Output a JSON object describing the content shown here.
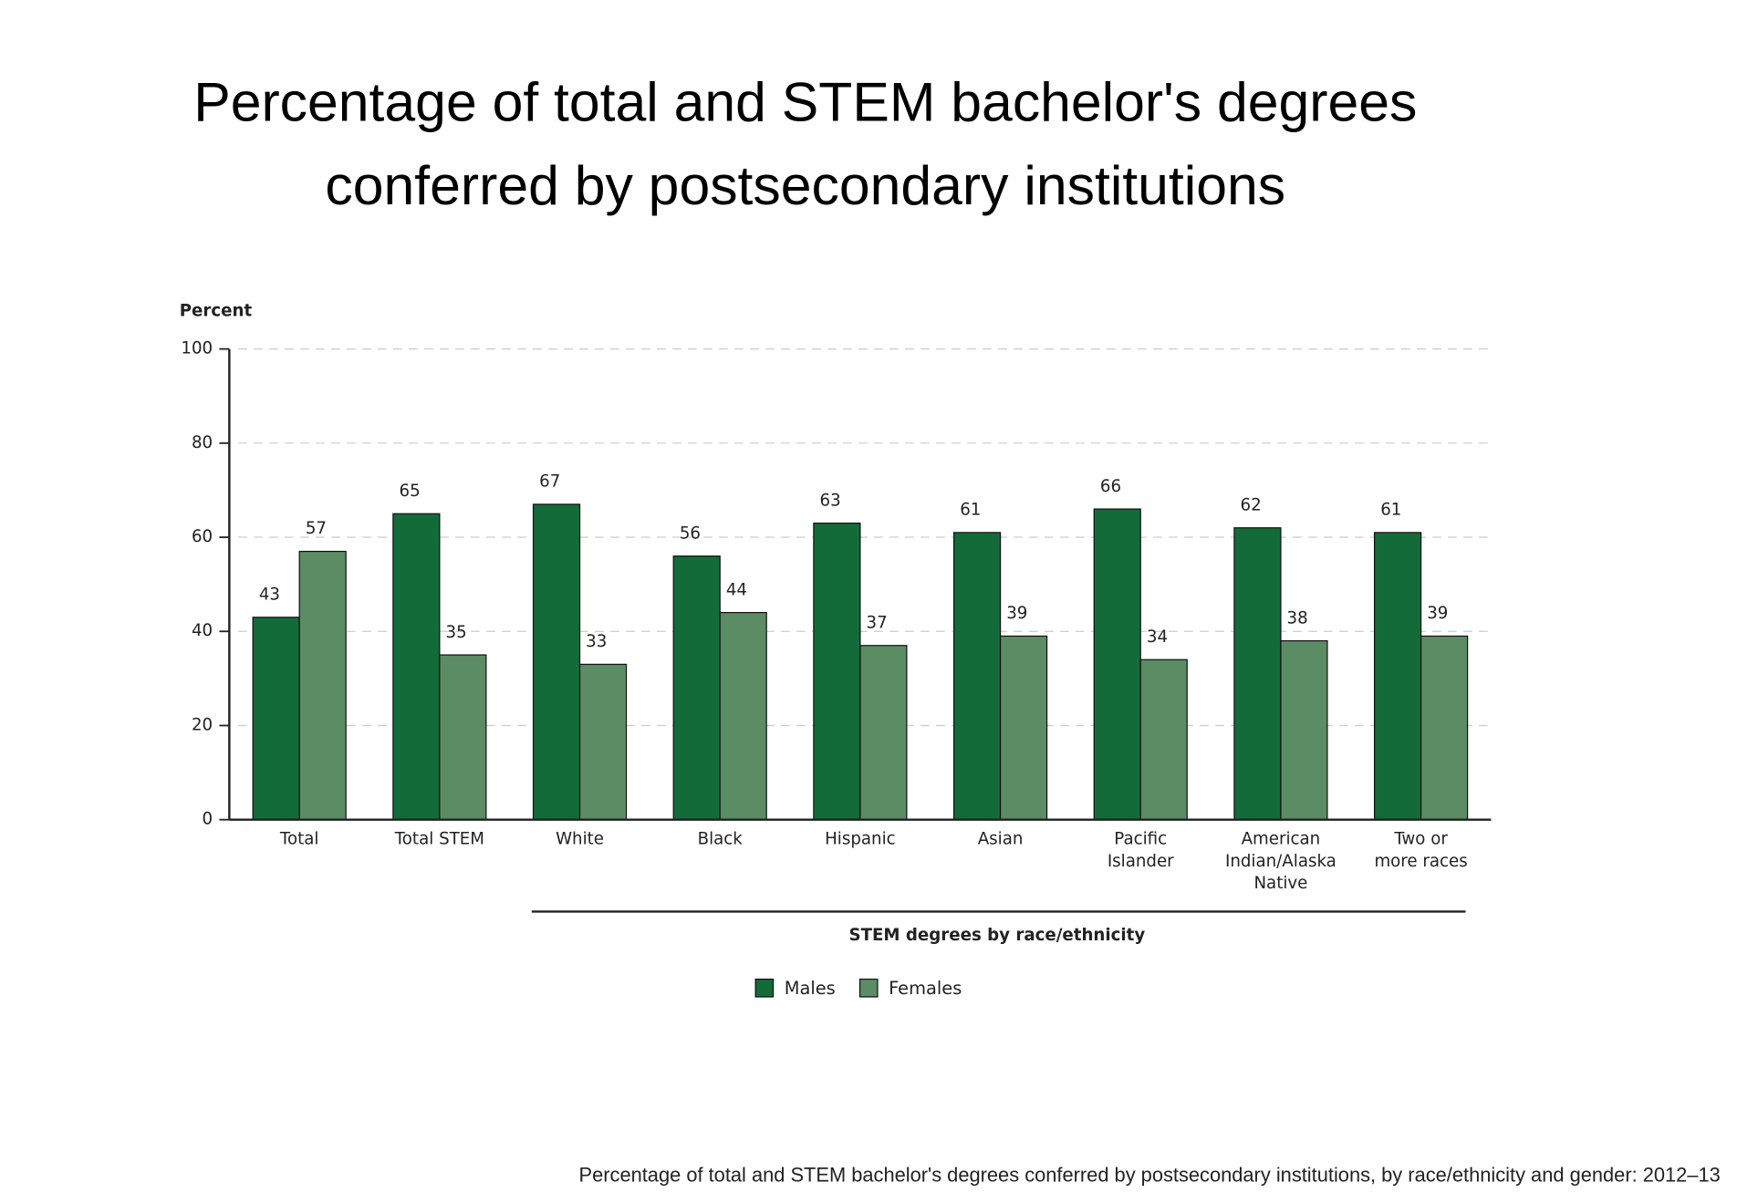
{
  "chart_data": {
    "type": "bar",
    "title": [
      "Percentage of total and STEM bachelor's degrees",
      "conferred by postsecondary institutions"
    ],
    "y_label": "Percent",
    "categories": [
      [
        "Total"
      ],
      [
        "Total STEM"
      ],
      [
        "White"
      ],
      [
        "Black"
      ],
      [
        "Hispanic"
      ],
      [
        "Asian"
      ],
      [
        "Pacific",
        "Islander"
      ],
      [
        "American",
        "Indian/Alaska",
        "Native"
      ],
      [
        "Two or",
        "more races"
      ]
    ],
    "series": [
      {
        "name": "Males",
        "color": "#136b3a",
        "values": [
          43,
          65,
          67,
          56,
          63,
          61,
          66,
          62,
          61
        ]
      },
      {
        "name": "Females",
        "color": "#5b8c63",
        "values": [
          57,
          35,
          33,
          44,
          37,
          39,
          34,
          38,
          39
        ]
      }
    ],
    "group_label": "STEM degrees by race/ethnicity",
    "ylim": [
      0,
      100
    ],
    "yticks": [
      0,
      20,
      40,
      60,
      80,
      100
    ],
    "grid": true,
    "legend": "bottom",
    "caption": "Percentage of total and STEM bachelor's degrees conferred by postsecondary institutions, by race/ethnicity and gender: 2012–13"
  }
}
